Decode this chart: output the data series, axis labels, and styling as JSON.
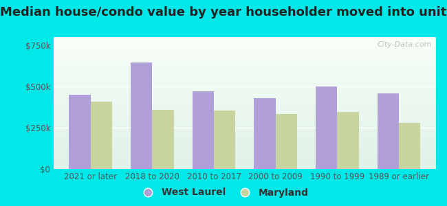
{
  "title": "Median house/condo value by year householder moved into unit",
  "categories": [
    "2021 or later",
    "2018 to 2020",
    "2010 to 2017",
    "2000 to 2009",
    "1990 to 1999",
    "1989 or earlier"
  ],
  "west_laurel": [
    450000,
    645000,
    470000,
    430000,
    498000,
    460000
  ],
  "maryland": [
    410000,
    360000,
    355000,
    335000,
    345000,
    280000
  ],
  "west_laurel_color": "#b09fd8",
  "maryland_color": "#c8d4a0",
  "background_color": "#00e8e8",
  "plot_bg_top": "#f0f8f0",
  "plot_bg_bottom": "#e0f2e8",
  "yticks": [
    0,
    250000,
    500000,
    750000
  ],
  "ylim": [
    0,
    800000
  ],
  "bar_width": 0.35,
  "title_fontsize": 13,
  "tick_fontsize": 8.5,
  "legend_fontsize": 10,
  "watermark_text": "City-Data.com"
}
